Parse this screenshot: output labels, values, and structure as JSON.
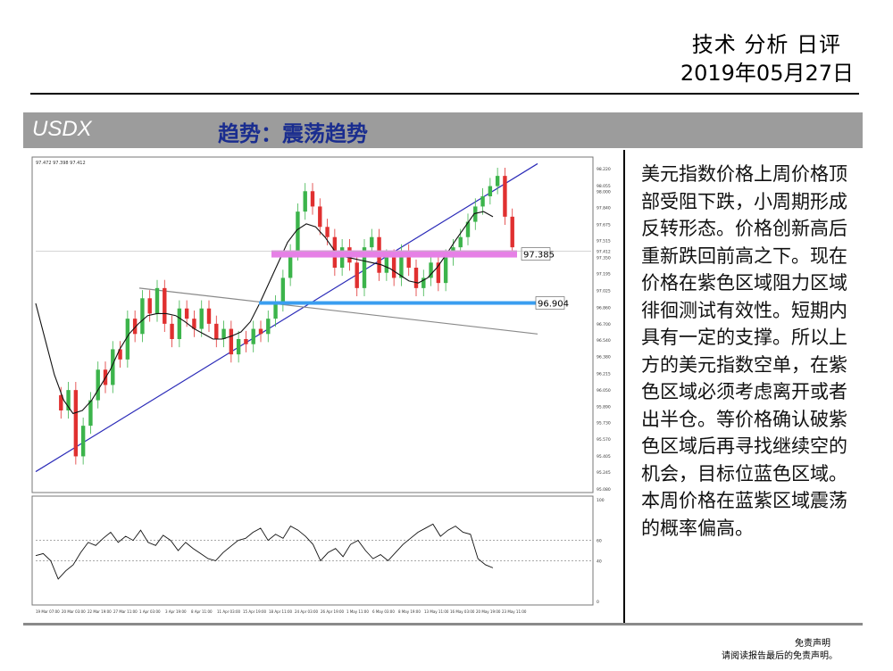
{
  "header": {
    "title": "技术 分析 日评",
    "date": "2019年05月27日"
  },
  "section_bar": {
    "symbol": "USDX",
    "trend": "趋势：震荡趋势"
  },
  "commentary": "美元指数价格上周价格顶部受阻下跌，小周期形成反转形态。价格创新高后重新跌回前高之下。现在价格在紫色区域阻力区域徘徊测试有效性。短期内具有一定的支撑。所以上方的美元指数空单，在紫色区域必须考虑离开或者出半仓。等价格确认破紫色区域后再寻找继续空的机会，目标位蓝色区域。本周价格在蓝紫区域震荡的概率偏高。",
  "disclaimer": {
    "title": "免责声明",
    "text": "请阅读报告最后的免责声明。"
  },
  "chart_data": {
    "type": "line",
    "ohlc_label": "97.472 97.398 97.412",
    "price_ticks": [
      "98.220",
      "98.055",
      "98.000",
      "97.840",
      "97.675",
      "97.515",
      "97.412",
      "97.350",
      "97.195",
      "97.025",
      "96.860",
      "96.700",
      "96.540",
      "96.380",
      "96.215",
      "96.050",
      "95.890",
      "95.730",
      "95.570",
      "95.405",
      "95.245",
      "95.080"
    ],
    "osc_ticks": [
      "100",
      "60",
      "40",
      "0"
    ],
    "x_ticks": [
      "19 Mar 07:00",
      "20 Mar 03:00",
      "22 Mar 19:00",
      "27 Mar 11:00",
      "1 Apr 03:00",
      "3 Apr 19:00",
      "8 Apr 11:00",
      "11 Apr 03:00",
      "15 Apr 19:00",
      "18 Apr 11:00",
      "24 Apr 03:00",
      "26 Apr 19:00",
      "1 May 11:00",
      "6 May 03:00",
      "8 May 19:00",
      "13 May 11:00",
      "16 May 03:00",
      "20 May 19:00",
      "23 May 11:00"
    ],
    "levels": [
      {
        "price": 97.385,
        "label": "97.385",
        "color": "#e680e6"
      },
      {
        "price": 96.904,
        "label": "96.904",
        "color": "#3a9ef0"
      }
    ],
    "current_price": 97.412,
    "ylim": [
      95.08,
      98.3
    ],
    "osc_ylim": [
      0,
      100
    ],
    "price_path": [
      96.0,
      95.85,
      96.05,
      95.4,
      95.7,
      95.95,
      96.25,
      96.1,
      96.45,
      96.35,
      96.75,
      96.6,
      96.95,
      96.8,
      97.05,
      96.7,
      96.55,
      96.85,
      96.75,
      96.65,
      96.85,
      96.7,
      96.55,
      96.65,
      96.4,
      96.55,
      96.5,
      96.65,
      96.6,
      96.75,
      96.9,
      97.15,
      97.4,
      97.8,
      98.0,
      97.85,
      97.65,
      97.55,
      97.25,
      97.45,
      97.3,
      97.05,
      97.45,
      97.55,
      97.2,
      97.35,
      97.15,
      97.4,
      97.25,
      97.05,
      97.15,
      97.3,
      97.1,
      97.35,
      97.45,
      97.55,
      97.7,
      97.85,
      97.95,
      98.05,
      98.15,
      97.75,
      97.45
    ],
    "ma_path": [
      96.9,
      96.55,
      96.2,
      95.95,
      95.82,
      95.85,
      95.95,
      96.1,
      96.25,
      96.45,
      96.6,
      96.7,
      96.78,
      96.8,
      96.8,
      96.78,
      96.72,
      96.65,
      96.6,
      96.55,
      96.55,
      96.58,
      96.62,
      96.72,
      96.9,
      97.1,
      97.3,
      97.5,
      97.62,
      97.68,
      97.65,
      97.55,
      97.42,
      97.36,
      97.34,
      97.32,
      97.3,
      97.28,
      97.24,
      97.18,
      97.12,
      97.1,
      97.15,
      97.25,
      97.38,
      97.52,
      97.65,
      97.78,
      97.8,
      97.75
    ],
    "rsi_path": [
      45,
      47,
      40,
      22,
      30,
      36,
      48,
      58,
      55,
      62,
      68,
      58,
      64,
      60,
      70,
      58,
      55,
      65,
      60,
      50,
      58,
      52,
      47,
      42,
      40,
      48,
      54,
      60,
      62,
      68,
      72,
      60,
      66,
      62,
      74,
      70,
      64,
      56,
      40,
      48,
      52,
      44,
      56,
      60,
      50,
      42,
      46,
      40,
      48,
      56,
      62,
      68,
      72,
      76,
      64,
      70,
      74,
      68,
      66,
      42,
      36,
      33
    ],
    "trendlines": [
      {
        "name": "",
        "color": "#2b2bb8",
        "from": [
          "19 Mar 07:00",
          95.25
        ],
        "to": [
          "23 May 11:00",
          98.2
        ]
      },
      {
        "name": "",
        "color": "#8a8a8a",
        "from": [
          "1 Apr 03:00",
          97.05
        ],
        "to": [
          "23 May 11:00",
          96.6
        ]
      }
    ]
  }
}
